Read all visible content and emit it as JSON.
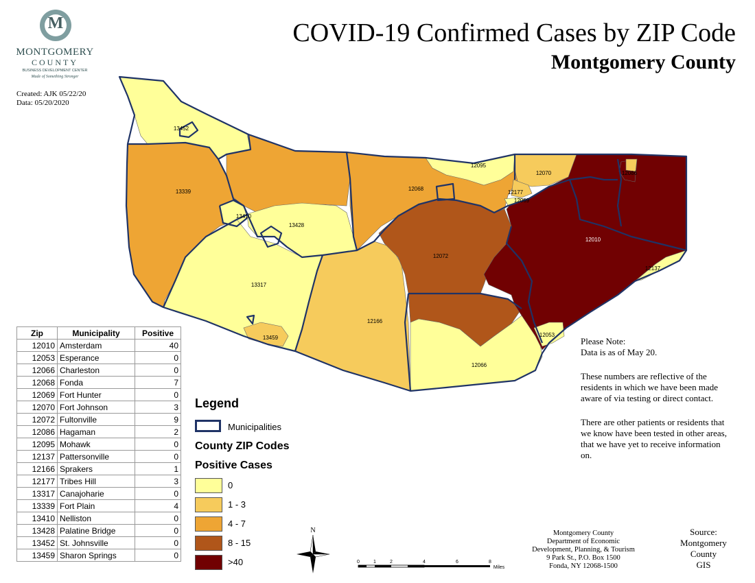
{
  "title": "COVID-19 Confirmed Cases by ZIP Code",
  "subtitle": "Montgomery County",
  "logo": {
    "letter": "M",
    "name": "MONTGOMERY",
    "county": "COUNTY",
    "line": "BUSINESS DEVELOPMENT CENTER",
    "tagline": "Made of Something Stronger"
  },
  "created": "Created: AJK 05/22/20",
  "data_date": "Data: 05/20/2020",
  "table": {
    "headers": [
      "Zip",
      "Municipality",
      "Positive"
    ],
    "rows": [
      {
        "zip": "12010",
        "name": "Amsterdam",
        "positive": "40"
      },
      {
        "zip": "12053",
        "name": "Esperance",
        "positive": "0"
      },
      {
        "zip": "12066",
        "name": "Charleston",
        "positive": "0"
      },
      {
        "zip": "12068",
        "name": "Fonda",
        "positive": "7"
      },
      {
        "zip": "12069",
        "name": "Fort Hunter",
        "positive": "0"
      },
      {
        "zip": "12070",
        "name": "Fort Johnson",
        "positive": "3"
      },
      {
        "zip": "12072",
        "name": "Fultonville",
        "positive": "9"
      },
      {
        "zip": "12086",
        "name": "Hagaman",
        "positive": "2"
      },
      {
        "zip": "12095",
        "name": "Mohawk",
        "positive": "0"
      },
      {
        "zip": "12137",
        "name": "Pattersonville",
        "positive": "0"
      },
      {
        "zip": "12166",
        "name": "Sprakers",
        "positive": "1"
      },
      {
        "zip": "12177",
        "name": "Tribes Hill",
        "positive": "3"
      },
      {
        "zip": "13317",
        "name": "Canajoharie",
        "positive": "0"
      },
      {
        "zip": "13339",
        "name": "Fort Plain",
        "positive": "4"
      },
      {
        "zip": "13410",
        "name": "Nelliston",
        "positive": "0"
      },
      {
        "zip": "13428",
        "name": "Palatine Bridge",
        "positive": "0"
      },
      {
        "zip": "13452",
        "name": "St. Johnsville",
        "positive": "0"
      },
      {
        "zip": "13459",
        "name": "Sharon Springs",
        "positive": "0"
      }
    ]
  },
  "legend": {
    "title": "Legend",
    "municipalities": "Municipalities",
    "zip_heading": "County ZIP Codes",
    "pos_heading": "Positive Cases",
    "classes": [
      {
        "label": "0",
        "color": "#ffff99"
      },
      {
        "label": "1 - 3",
        "color": "#f6cb5c"
      },
      {
        "label": "4 - 7",
        "color": "#eea534"
      },
      {
        "label": "8 - 15",
        "color": "#b0561a"
      },
      {
        "label": ">40",
        "color": "#710102"
      }
    ]
  },
  "map": {
    "boundary_color": "#1f3366",
    "zip_labels": [
      "13452",
      "13339",
      "13410",
      "13428",
      "13317",
      "13459",
      "12166",
      "12068",
      "12095",
      "12072",
      "12066",
      "12177",
      "12069",
      "12070",
      "12086",
      "12010",
      "12137",
      "12053"
    ]
  },
  "note": {
    "heading": "Please Note:",
    "line1": "Data is as of May 20.",
    "p2": "These numbers are reflective of the residents in which we have been made aware of via testing or direct contact.",
    "p3": "There are other patients or residents that we know have been tested in other areas, that we have yet to receive information on."
  },
  "dept": {
    "l1": "Montgomery County",
    "l2": "Department of Economic",
    "l3": "Development, Planning, & Tourism",
    "l4": "9 Park St., P.O. Box 1500",
    "l5": "Fonda, NY 12068-1500"
  },
  "source": {
    "l1": "Source:",
    "l2": "Montgomery",
    "l3": "County",
    "l4": "GIS"
  },
  "north": "N",
  "scale": {
    "ticks": [
      "0",
      "1",
      "2",
      "4",
      "6",
      "8"
    ],
    "unit": "Miles"
  }
}
